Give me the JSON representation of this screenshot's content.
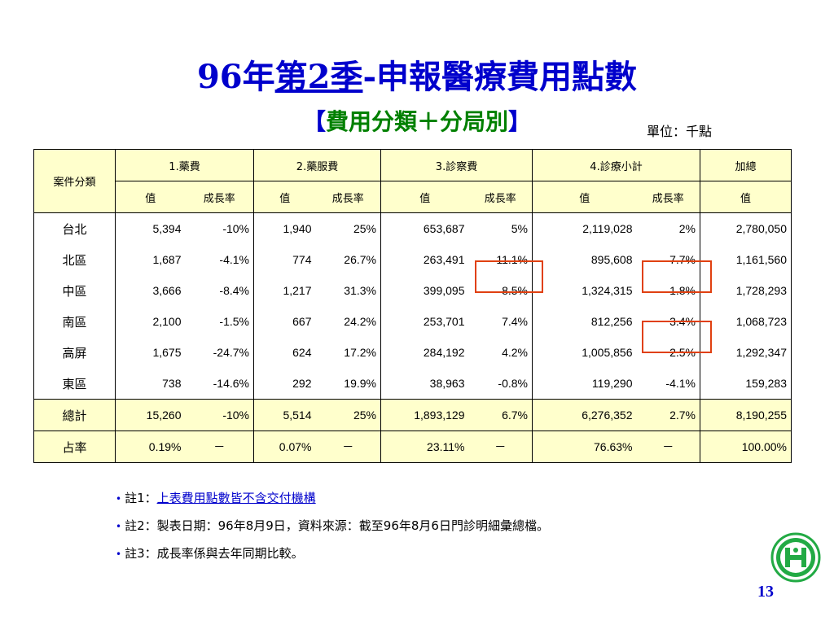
{
  "title": {
    "part1": "96年",
    "part2": "第2季",
    "part3": "-申報醫療費用點數"
  },
  "subtitle": {
    "open": "【",
    "text": "費用分類＋分局別",
    "close": "】"
  },
  "unit": "單位：千點",
  "table": {
    "row_header": "案件分類",
    "groups": [
      "1.藥費",
      "2.藥服費",
      "3.診察費",
      "4.診療小計",
      "加總"
    ],
    "subheaders": [
      "值",
      "成長率",
      "值",
      "成長率",
      "值",
      "成長率",
      "值",
      "成長率",
      "值"
    ],
    "rows": [
      {
        "label": "台北",
        "cells": [
          "5,394",
          "-10%",
          "1,940",
          "25%",
          "653,687",
          "5%",
          "2,119,028",
          "2%",
          "2,780,050"
        ]
      },
      {
        "label": "北區",
        "cells": [
          "1,687",
          "-4.1%",
          "774",
          "26.7%",
          "263,491",
          "11.1%",
          "895,608",
          "7.7%",
          "1,161,560"
        ]
      },
      {
        "label": "中區",
        "cells": [
          "3,666",
          "-8.4%",
          "1,217",
          "31.3%",
          "399,095",
          "8.5%",
          "1,324,315",
          "1.8%",
          "1,728,293"
        ]
      },
      {
        "label": "南區",
        "cells": [
          "2,100",
          "-1.5%",
          "667",
          "24.2%",
          "253,701",
          "7.4%",
          "812,256",
          "3.4%",
          "1,068,723"
        ]
      },
      {
        "label": "高屏",
        "cells": [
          "1,675",
          "-24.7%",
          "624",
          "17.2%",
          "284,192",
          "4.2%",
          "1,005,856",
          "2.5%",
          "1,292,347"
        ]
      },
      {
        "label": "東區",
        "cells": [
          "738",
          "-14.6%",
          "292",
          "19.9%",
          "38,963",
          "-0.8%",
          "119,290",
          "-4.1%",
          "159,283"
        ]
      }
    ],
    "total": {
      "label": "總計",
      "cells": [
        "15,260",
        "-10%",
        "5,514",
        "25%",
        "1,893,129",
        "6.7%",
        "6,276,352",
        "2.7%",
        "8,190,255"
      ]
    },
    "share": {
      "label": "占率",
      "cells": [
        "0.19%",
        "－",
        "0.07%",
        "－",
        "23.11%",
        "－",
        "76.63%",
        "－",
        "100.00%"
      ]
    }
  },
  "notes": [
    {
      "prefix": "註1：",
      "text": "上表費用點數皆不含交付機構"
    },
    {
      "prefix": "註2：",
      "text": "製表日期：96年8月9日，資料來源：截至96年8月6日門診明細彙總檔。"
    },
    {
      "prefix": "註3：",
      "text": "成長率係與去年同期比較。"
    }
  ],
  "page_number": "13",
  "colors": {
    "title": "#0000cc",
    "subtitle_accent": "#008000",
    "header_bg": "#ffffcc",
    "highlight_box": "#e04010"
  },
  "icons": {
    "logo": "nhi-logo-icon",
    "bullet": "bullet-dot-icon"
  }
}
